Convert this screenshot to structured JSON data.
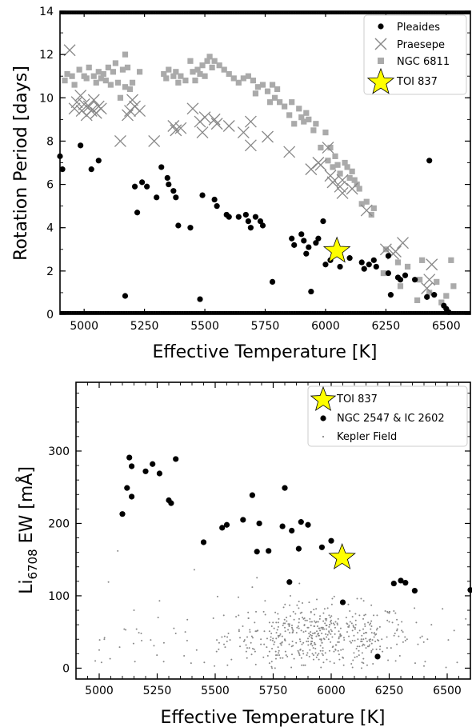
{
  "chart_data": [
    {
      "type": "scatter",
      "xlabel": "Effective Temperature [K]",
      "ylabel": "Rotation Period [days]",
      "xlim": [
        4900,
        6600
      ],
      "ylim": [
        0,
        14
      ],
      "xticks": [
        5000,
        5250,
        5500,
        5750,
        6000,
        6250,
        6500
      ],
      "yticks": [
        0,
        2,
        4,
        6,
        8,
        10,
        12,
        14
      ],
      "legend_position": "top-right",
      "series": [
        {
          "name": "Pleaides",
          "marker": "circle",
          "color": "#000000",
          "points": [
            [
              4900,
              7.3
            ],
            [
              4910,
              6.7
            ],
            [
              4985,
              7.8
            ],
            [
              5030,
              6.7
            ],
            [
              5060,
              7.1
            ],
            [
              5170,
              0.85
            ],
            [
              5210,
              5.9
            ],
            [
              5220,
              4.7
            ],
            [
              5240,
              6.1
            ],
            [
              5260,
              5.9
            ],
            [
              5300,
              5.4
            ],
            [
              5320,
              6.8
            ],
            [
              5345,
              6.3
            ],
            [
              5350,
              6.0
            ],
            [
              5370,
              5.7
            ],
            [
              5380,
              5.4
            ],
            [
              5390,
              4.1
            ],
            [
              5440,
              4.0
            ],
            [
              5480,
              0.7
            ],
            [
              5490,
              5.5
            ],
            [
              5540,
              5.3
            ],
            [
              5550,
              5.0
            ],
            [
              5590,
              4.6
            ],
            [
              5600,
              4.5
            ],
            [
              5640,
              4.5
            ],
            [
              5670,
              4.6
            ],
            [
              5680,
              4.3
            ],
            [
              5690,
              4.0
            ],
            [
              5710,
              4.5
            ],
            [
              5730,
              4.3
            ],
            [
              5740,
              4.1
            ],
            [
              5780,
              1.5
            ],
            [
              5860,
              3.5
            ],
            [
              5870,
              3.2
            ],
            [
              5900,
              3.7
            ],
            [
              5910,
              3.4
            ],
            [
              5920,
              2.8
            ],
            [
              5930,
              3.1
            ],
            [
              5940,
              1.05
            ],
            [
              5960,
              3.3
            ],
            [
              5970,
              3.5
            ],
            [
              5990,
              4.3
            ],
            [
              6000,
              2.3
            ],
            [
              6020,
              2.5
            ],
            [
              6060,
              2.2
            ],
            [
              6100,
              2.6
            ],
            [
              6150,
              2.4
            ],
            [
              6160,
              2.1
            ],
            [
              6180,
              2.3
            ],
            [
              6200,
              2.5
            ],
            [
              6210,
              2.2
            ],
            [
              6260,
              2.7
            ],
            [
              6260,
              1.9
            ],
            [
              6270,
              0.9
            ],
            [
              6300,
              1.7
            ],
            [
              6310,
              1.6
            ],
            [
              6330,
              1.8
            ],
            [
              6370,
              1.6
            ],
            [
              6420,
              0.8
            ],
            [
              6430,
              7.1
            ],
            [
              6450,
              0.9
            ],
            [
              6490,
              0.4
            ],
            [
              6500,
              0.25
            ],
            [
              6510,
              0.1
            ]
          ]
        },
        {
          "name": "Praesepe",
          "marker": "x",
          "color": "#888888",
          "points": [
            [
              4940,
              12.2
            ],
            [
              4960,
              9.5
            ],
            [
              4970,
              9.8
            ],
            [
              4985,
              10.1
            ],
            [
              4990,
              9.4
            ],
            [
              5000,
              9.7
            ],
            [
              5010,
              9.2
            ],
            [
              5020,
              9.6
            ],
            [
              5030,
              9.4
            ],
            [
              5040,
              9.9
            ],
            [
              5050,
              9.3
            ],
            [
              5060,
              9.6
            ],
            [
              5070,
              9.5
            ],
            [
              5150,
              8.0
            ],
            [
              5180,
              9.2
            ],
            [
              5190,
              9.4
            ],
            [
              5200,
              9.9
            ],
            [
              5210,
              9.6
            ],
            [
              5230,
              9.4
            ],
            [
              5290,
              8.0
            ],
            [
              5370,
              8.7
            ],
            [
              5380,
              8.5
            ],
            [
              5400,
              8.6
            ],
            [
              5450,
              9.5
            ],
            [
              5480,
              8.9
            ],
            [
              5490,
              8.4
            ],
            [
              5500,
              9.1
            ],
            [
              5540,
              9.0
            ],
            [
              5550,
              8.8
            ],
            [
              5600,
              8.7
            ],
            [
              5660,
              8.4
            ],
            [
              5690,
              7.8
            ],
            [
              5690,
              8.9
            ],
            [
              5760,
              8.2
            ],
            [
              5850,
              7.5
            ],
            [
              5940,
              6.7
            ],
            [
              5970,
              7.0
            ],
            [
              5980,
              6.9
            ],
            [
              6010,
              7.7
            ],
            [
              6020,
              6.4
            ],
            [
              6030,
              6.1
            ],
            [
              6060,
              5.9
            ],
            [
              6070,
              6.2
            ],
            [
              6070,
              5.6
            ],
            [
              6110,
              5.8
            ],
            [
              6170,
              4.8
            ],
            [
              6250,
              3.0
            ],
            [
              6280,
              2.8
            ],
            [
              6290,
              2.9
            ],
            [
              6320,
              3.3
            ],
            [
              6420,
              1.2
            ],
            [
              6430,
              1.6
            ],
            [
              6440,
              2.3
            ]
          ]
        },
        {
          "name": "NGC 6811",
          "marker": "square",
          "color": "#aaaaaa",
          "points": [
            [
              4920,
              10.8
            ],
            [
              4930,
              11.1
            ],
            [
              4950,
              11.0
            ],
            [
              4960,
              10.6
            ],
            [
              4980,
              11.3
            ],
            [
              5000,
              11.0
            ],
            [
              5010,
              10.9
            ],
            [
              5020,
              11.4
            ],
            [
              5040,
              11.0
            ],
            [
              5050,
              10.7
            ],
            [
              5060,
              11.2
            ],
            [
              5070,
              10.9
            ],
            [
              5080,
              11.1
            ],
            [
              5090,
              10.8
            ],
            [
              5100,
              11.4
            ],
            [
              5110,
              10.6
            ],
            [
              5120,
              11.2
            ],
            [
              5130,
              11.6
            ],
            [
              5140,
              10.7
            ],
            [
              5150,
              10.0
            ],
            [
              5160,
              11.3
            ],
            [
              5170,
              10.5
            ],
            [
              5170,
              12.0
            ],
            [
              5180,
              11.4
            ],
            [
              5190,
              10.4
            ],
            [
              5200,
              10.7
            ],
            [
              5230,
              11.2
            ],
            [
              5330,
              11.1
            ],
            [
              5340,
              10.9
            ],
            [
              5350,
              11.3
            ],
            [
              5370,
              11.0
            ],
            [
              5380,
              11.2
            ],
            [
              5390,
              10.7
            ],
            [
              5400,
              11.0
            ],
            [
              5420,
              10.8
            ],
            [
              5440,
              11.7
            ],
            [
              5450,
              11.2
            ],
            [
              5460,
              10.8
            ],
            [
              5470,
              11.3
            ],
            [
              5480,
              11.1
            ],
            [
              5490,
              11.5
            ],
            [
              5500,
              11.0
            ],
            [
              5510,
              11.7
            ],
            [
              5520,
              11.9
            ],
            [
              5530,
              11.4
            ],
            [
              5540,
              11.7
            ],
            [
              5560,
              11.5
            ],
            [
              5580,
              11.3
            ],
            [
              5600,
              11.1
            ],
            [
              5620,
              10.9
            ],
            [
              5640,
              10.7
            ],
            [
              5660,
              10.9
            ],
            [
              5680,
              11.0
            ],
            [
              5700,
              10.8
            ],
            [
              5710,
              10.2
            ],
            [
              5720,
              10.5
            ],
            [
              5740,
              10.6
            ],
            [
              5760,
              10.3
            ],
            [
              5770,
              9.8
            ],
            [
              5780,
              10.6
            ],
            [
              5790,
              10.0
            ],
            [
              5800,
              10.4
            ],
            [
              5810,
              9.8
            ],
            [
              5830,
              9.6
            ],
            [
              5850,
              9.2
            ],
            [
              5860,
              9.8
            ],
            [
              5870,
              8.8
            ],
            [
              5890,
              9.5
            ],
            [
              5900,
              9.1
            ],
            [
              5910,
              8.9
            ],
            [
              5920,
              9.3
            ],
            [
              5930,
              9.0
            ],
            [
              5950,
              8.5
            ],
            [
              5960,
              8.8
            ],
            [
              5980,
              7.7
            ],
            [
              6000,
              8.4
            ],
            [
              6010,
              7.1
            ],
            [
              6020,
              7.7
            ],
            [
              6030,
              6.8
            ],
            [
              6040,
              7.3
            ],
            [
              6050,
              6.9
            ],
            [
              6060,
              6.5
            ],
            [
              6080,
              7.0
            ],
            [
              6090,
              6.8
            ],
            [
              6100,
              6.3
            ],
            [
              6110,
              6.6
            ],
            [
              6120,
              6.2
            ],
            [
              6130,
              6.0
            ],
            [
              6140,
              5.8
            ],
            [
              6150,
              5.1
            ],
            [
              6170,
              5.2
            ],
            [
              6190,
              4.6
            ],
            [
              6200,
              4.9
            ],
            [
              6240,
              1.9
            ],
            [
              6250,
              3.0
            ],
            [
              6300,
              2.4
            ],
            [
              6310,
              1.3
            ],
            [
              6340,
              2.2
            ],
            [
              6380,
              0.65
            ],
            [
              6390,
              1.6
            ],
            [
              6400,
              2.5
            ],
            [
              6430,
              1.0
            ],
            [
              6460,
              1.5
            ],
            [
              6480,
              0.55
            ],
            [
              6500,
              0.85
            ],
            [
              6520,
              2.5
            ],
            [
              6530,
              1.3
            ]
          ]
        },
        {
          "name": "TOI 837",
          "marker": "star",
          "color": "#ffff00",
          "points": [
            [
              6047,
              3.0
            ]
          ]
        }
      ]
    },
    {
      "type": "scatter",
      "xlabel": "Effective Temperature [K]",
      "ylabel": "Li",
      "ylabel_subscript": "6708",
      "ylabel_suffix": " EW [mÅ]",
      "xlim": [
        4900,
        6600
      ],
      "ylim": [
        -15,
        395
      ],
      "xticks": [
        5000,
        5250,
        5500,
        5750,
        6000,
        6250,
        6500
      ],
      "yticks": [
        0,
        100,
        200,
        300
      ],
      "legend_position": "top-right",
      "series": [
        {
          "name": "TOI 837",
          "marker": "star",
          "color": "#ffff00",
          "points": [
            [
              6047,
              155
            ]
          ]
        },
        {
          "name": "NGC 2547 & IC 2602",
          "marker": "circle",
          "color": "#000000",
          "points": [
            [
              5100,
              213
            ],
            [
              5120,
              249
            ],
            [
              5130,
              291
            ],
            [
              5140,
              237
            ],
            [
              5140,
              279
            ],
            [
              5200,
              272
            ],
            [
              5230,
              282
            ],
            [
              5260,
              269
            ],
            [
              5300,
              232
            ],
            [
              5310,
              228
            ],
            [
              5330,
              289
            ],
            [
              5450,
              174
            ],
            [
              5530,
              194
            ],
            [
              5550,
              198
            ],
            [
              5620,
              205
            ],
            [
              5660,
              239
            ],
            [
              5680,
              161
            ],
            [
              5690,
              200
            ],
            [
              5730,
              162
            ],
            [
              5790,
              196
            ],
            [
              5800,
              249
            ],
            [
              5820,
              119
            ],
            [
              5830,
              190
            ],
            [
              5860,
              165
            ],
            [
              5870,
              202
            ],
            [
              5900,
              198
            ],
            [
              5960,
              167
            ],
            [
              6000,
              176
            ],
            [
              6050,
              91
            ],
            [
              6200,
              16
            ],
            [
              6270,
              117
            ],
            [
              6300,
              121
            ],
            [
              6320,
              118
            ],
            [
              6360,
              107
            ],
            [
              6600,
              108
            ]
          ]
        },
        {
          "name": "Kepler Field",
          "marker": "dot",
          "color": "#888888",
          "points": []
        }
      ]
    }
  ]
}
